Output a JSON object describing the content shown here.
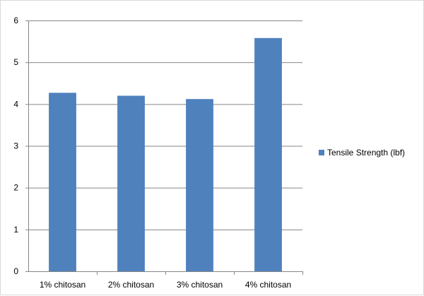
{
  "chart_data": {
    "type": "bar",
    "categories": [
      "1% chitosan",
      "2% chitosan",
      "3% chitosan",
      "4% chitosan"
    ],
    "series": [
      {
        "name": "Tensile Strength (lbf)",
        "values": [
          4.27,
          4.2,
          4.12,
          5.58
        ],
        "color": "#4f81bd"
      }
    ],
    "title": "",
    "xlabel": "",
    "ylabel": "",
    "ylim": [
      0,
      6
    ],
    "yticks": [
      0,
      1,
      2,
      3,
      4,
      5,
      6
    ],
    "grid": true,
    "legend_position": "right"
  }
}
